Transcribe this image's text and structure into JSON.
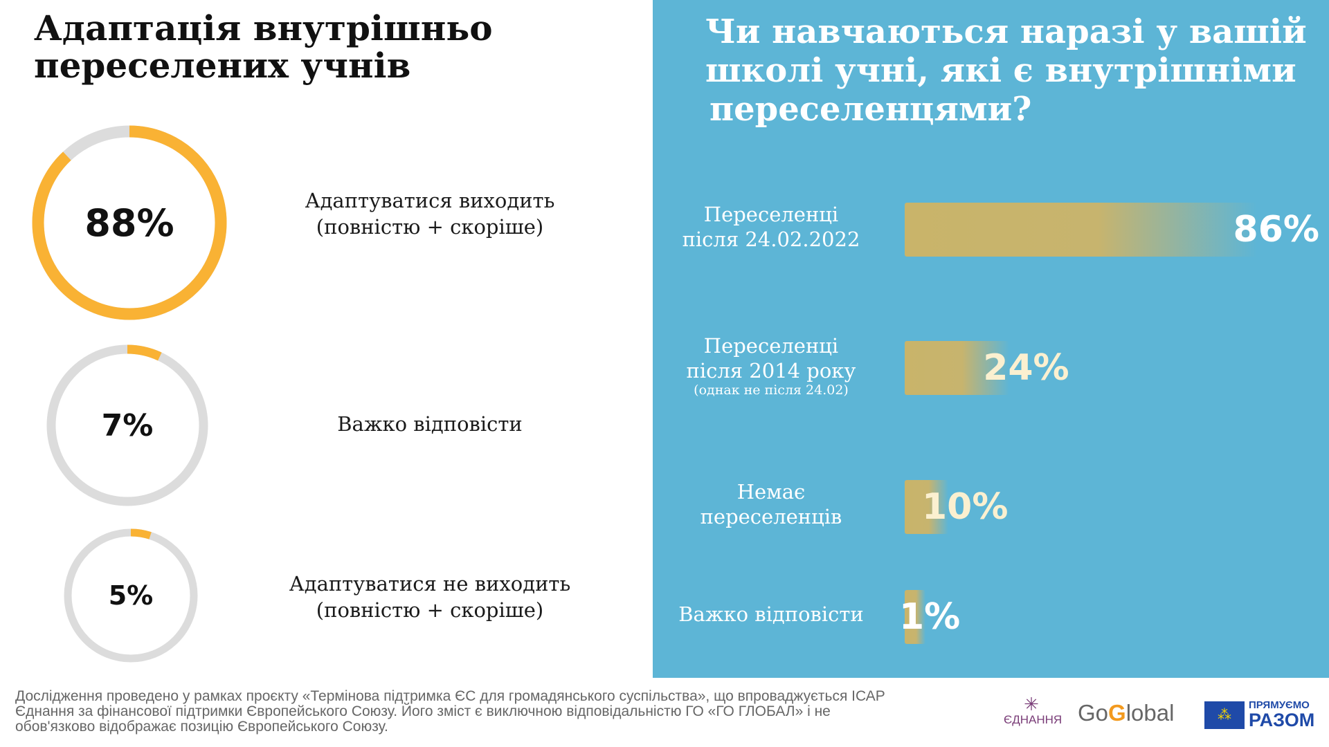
{
  "left": {
    "title_line1": "Адаптація внутрішньо",
    "title_line2": "переселених учнів",
    "rings": [
      {
        "value": 88,
        "label": "88%",
        "text1": "Адаптуватися виходить",
        "text2": "(повністю + скоріше)"
      },
      {
        "value": 7,
        "label": "7%",
        "text1": "Важко відповісти",
        "text2": ""
      },
      {
        "value": 5,
        "label": "5%",
        "text1": "Адаптуватися не виходить",
        "text2": "(повністю + скоріше)"
      }
    ]
  },
  "chart_data": {
    "type": "bar",
    "title": "Чи навчаються наразі у вашій школі учні, які є внутрішніми переселенцями?",
    "title_lines": [
      "Чи навчаються наразі у вашій",
      "школі учні, які є внутрішніми",
      "переселенцями?"
    ],
    "categories": [
      {
        "line1": "Переселенці",
        "line2": "після 24.02.2022",
        "note": ""
      },
      {
        "line1": "Переселенці",
        "line2": "після 2014 року",
        "note": "(однак не після 24.02)"
      },
      {
        "line1": "Немає",
        "line2": "переселенців",
        "note": ""
      },
      {
        "line1": "Важко відповісти",
        "line2": "",
        "note": ""
      }
    ],
    "values": [
      86,
      24,
      10,
      1
    ],
    "value_labels": [
      "86%",
      "24%",
      "10%",
      "1%"
    ],
    "xlim": [
      0,
      100
    ]
  },
  "colors": {
    "orange": "#f9b234",
    "ring_bg": "#dcdcdc",
    "panel": "#5db5d6"
  },
  "footer": {
    "line1": "Дослідження проведено у рамках проєкту «Термінова підтримка ЄС для громадянського суспільства», що впроваджується ІСАР",
    "line2": "Єднання за фінансової підтримки Європейського Союзу. Його зміст є виключною відповідальністю ГО «ГО ГЛОБАЛ» і не",
    "line3": "обов'язково відображає позицію Європейського Союзу."
  },
  "logos": {
    "ednannia": "ЄДНАННЯ",
    "goglobal_go": "Go",
    "goglobal_g": "G",
    "goglobal_rest": "lobal",
    "eu_line1": "ПРЯМУЄМО",
    "eu_line2": "РАЗОМ"
  }
}
